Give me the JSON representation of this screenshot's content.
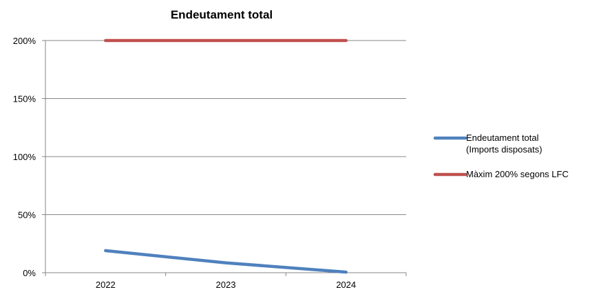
{
  "chart_data": {
    "type": "line",
    "title": "Endeutament total",
    "xlabel": "",
    "ylabel": "",
    "categories": [
      "2022",
      "2023",
      "2024"
    ],
    "y_ticks": [
      "0%",
      "50%",
      "100%",
      "150%",
      "200%"
    ],
    "ylim": [
      0,
      200
    ],
    "grid": true,
    "legend_position": "right",
    "series": [
      {
        "name": "Endeutament total\n(Imports disposats)",
        "values": [
          19,
          8.5,
          0.5
        ],
        "color": "#4F81BD"
      },
      {
        "name": "Màxim 200% segons LFC",
        "values": [
          200,
          200,
          200
        ],
        "color": "#C0504D"
      }
    ]
  }
}
